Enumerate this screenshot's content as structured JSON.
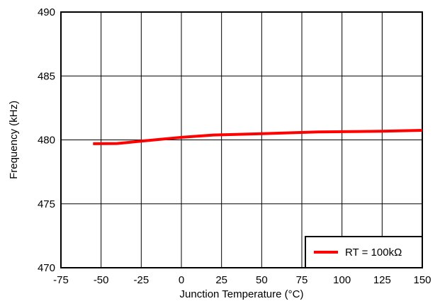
{
  "chart_data": {
    "type": "line",
    "title": "",
    "xlabel": "Junction Temperature (°C)",
    "ylabel": "Frequency (kHz)",
    "xlim": [
      -75,
      150
    ],
    "ylim": [
      470,
      490
    ],
    "xticks": [
      -75,
      -50,
      -25,
      0,
      25,
      50,
      75,
      100,
      125,
      150
    ],
    "yticks": [
      470,
      475,
      480,
      485,
      490
    ],
    "grid": true,
    "legend_position": "bottom-right",
    "series": [
      {
        "name": "RT = 100kΩ",
        "color": "#ff0000",
        "x": [
          -55,
          -40,
          -25,
          0,
          20,
          50,
          85,
          125,
          150
        ],
        "y": [
          479.7,
          479.72,
          479.9,
          480.2,
          480.38,
          480.48,
          480.62,
          480.68,
          480.75
        ]
      }
    ]
  }
}
